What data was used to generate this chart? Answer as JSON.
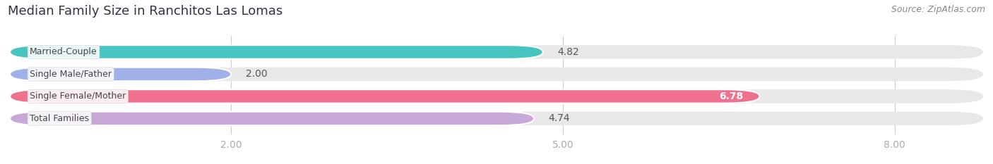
{
  "title": "Median Family Size in Ranchitos Las Lomas",
  "source": "Source: ZipAtlas.com",
  "categories": [
    "Married-Couple",
    "Single Male/Father",
    "Single Female/Mother",
    "Total Families"
  ],
  "values": [
    4.82,
    2.0,
    6.78,
    4.74
  ],
  "bar_colors": [
    "#45c4c0",
    "#a0b0e8",
    "#f07090",
    "#c8a8d8"
  ],
  "bar_labels": [
    "4.82",
    "2.00",
    "6.78",
    "4.74"
  ],
  "label_inside": [
    false,
    false,
    true,
    false
  ],
  "xlim_data": [
    0,
    8.8
  ],
  "xstart": 0,
  "xticks": [
    2.0,
    5.0,
    8.0
  ],
  "xtick_labels": [
    "2.00",
    "5.00",
    "8.00"
  ],
  "background_color": "#ffffff",
  "bar_background_color": "#e8e8e8",
  "title_fontsize": 13,
  "source_fontsize": 9,
  "label_fontsize": 10,
  "tick_fontsize": 10,
  "bar_height": 0.62,
  "bar_gap": 0.18
}
